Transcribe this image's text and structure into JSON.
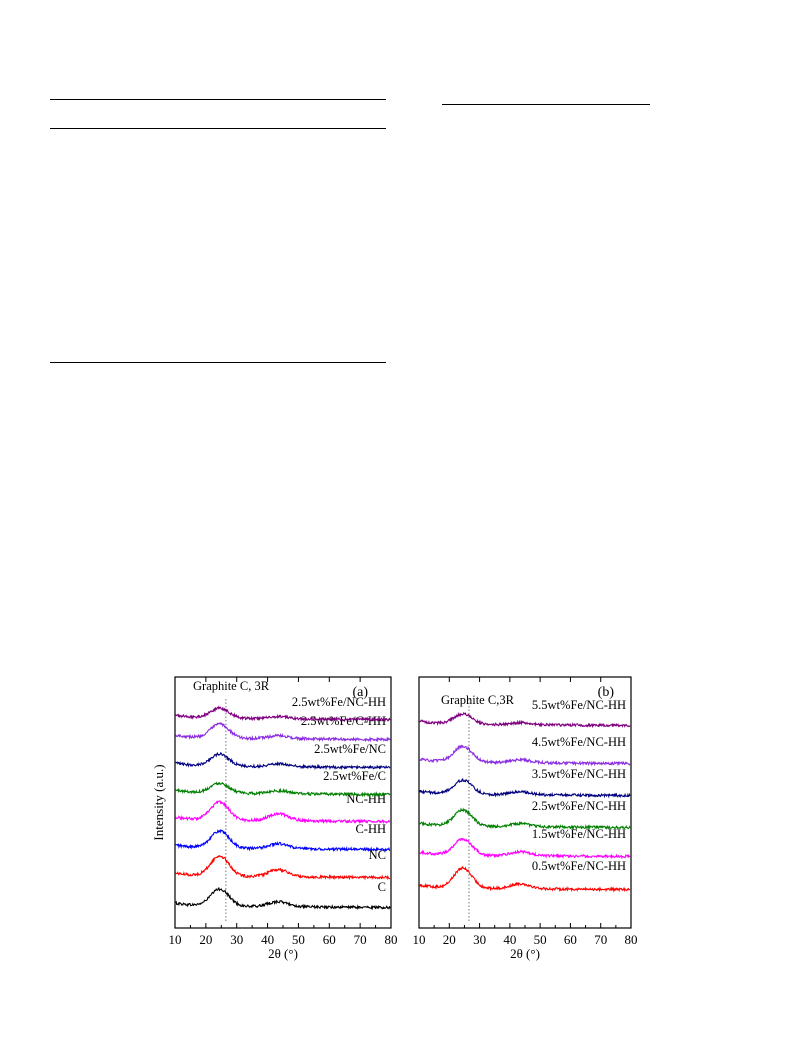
{
  "chart_data": [
    {
      "type": "line",
      "panel": "(a)",
      "annotation": "Graphite C, 3R",
      "reference_line_x": 26.5,
      "xlabel": "2θ (°)",
      "ylabel": "Intensity (a.u.)",
      "xlim": [
        10,
        80
      ],
      "xticks": [
        "10",
        "20",
        "30",
        "40",
        "50",
        "60",
        "70",
        "80"
      ],
      "series": [
        {
          "name": "C",
          "color": "#000000",
          "peak1_height": 17,
          "peak2_height": 5
        },
        {
          "name": "NC",
          "color": "#ff0000",
          "peak1_height": 20,
          "peak2_height": 7
        },
        {
          "name": "C-HH",
          "color": "#0000ff",
          "peak1_height": 17,
          "peak2_height": 5
        },
        {
          "name": "NC-HH",
          "color": "#ff00ff",
          "peak1_height": 18,
          "peak2_height": 7
        },
        {
          "name": "2.5wt%Fe/C",
          "color": "#008000",
          "peak1_height": 10,
          "peak2_height": 3
        },
        {
          "name": "2.5wt%Fe/NC",
          "color": "#000080",
          "peak1_height": 12,
          "peak2_height": 3
        },
        {
          "name": "2.5wt%Fe/C-HH",
          "color": "#8a2be2",
          "peak1_height": 14,
          "peak2_height": 3
        },
        {
          "name": "2.5wt%Fe/NC-HH",
          "color": "#800080",
          "peak1_height": 10,
          "peak2_height": 2
        }
      ]
    },
    {
      "type": "line",
      "panel": "(b)",
      "annotation": "Graphite C,3R",
      "reference_line_x": 26.5,
      "xlabel": "2θ (°)",
      "xlim": [
        10,
        80
      ],
      "xticks": [
        "10",
        "20",
        "30",
        "40",
        "50",
        "60",
        "70",
        "80"
      ],
      "series": [
        {
          "name": "0.5wt%Fe/NC-HH",
          "color": "#ff0000",
          "peak1_height": 20,
          "peak2_height": 5
        },
        {
          "name": "1.5wt%Fe/NC-HH",
          "color": "#ff00ff",
          "peak1_height": 16,
          "peak2_height": 4
        },
        {
          "name": "2.5wt%Fe/NC-HH",
          "color": "#008000",
          "peak1_height": 16,
          "peak2_height": 3
        },
        {
          "name": "3.5wt%Fe/NC-HH",
          "color": "#000080",
          "peak1_height": 14,
          "peak2_height": 3
        },
        {
          "name": "4.5wt%Fe/NC-HH",
          "color": "#8a2be2",
          "peak1_height": 16,
          "peak2_height": 3
        },
        {
          "name": "5.5wt%Fe/NC-HH",
          "color": "#800080",
          "peak1_height": 10,
          "peak2_height": 2
        }
      ]
    }
  ]
}
